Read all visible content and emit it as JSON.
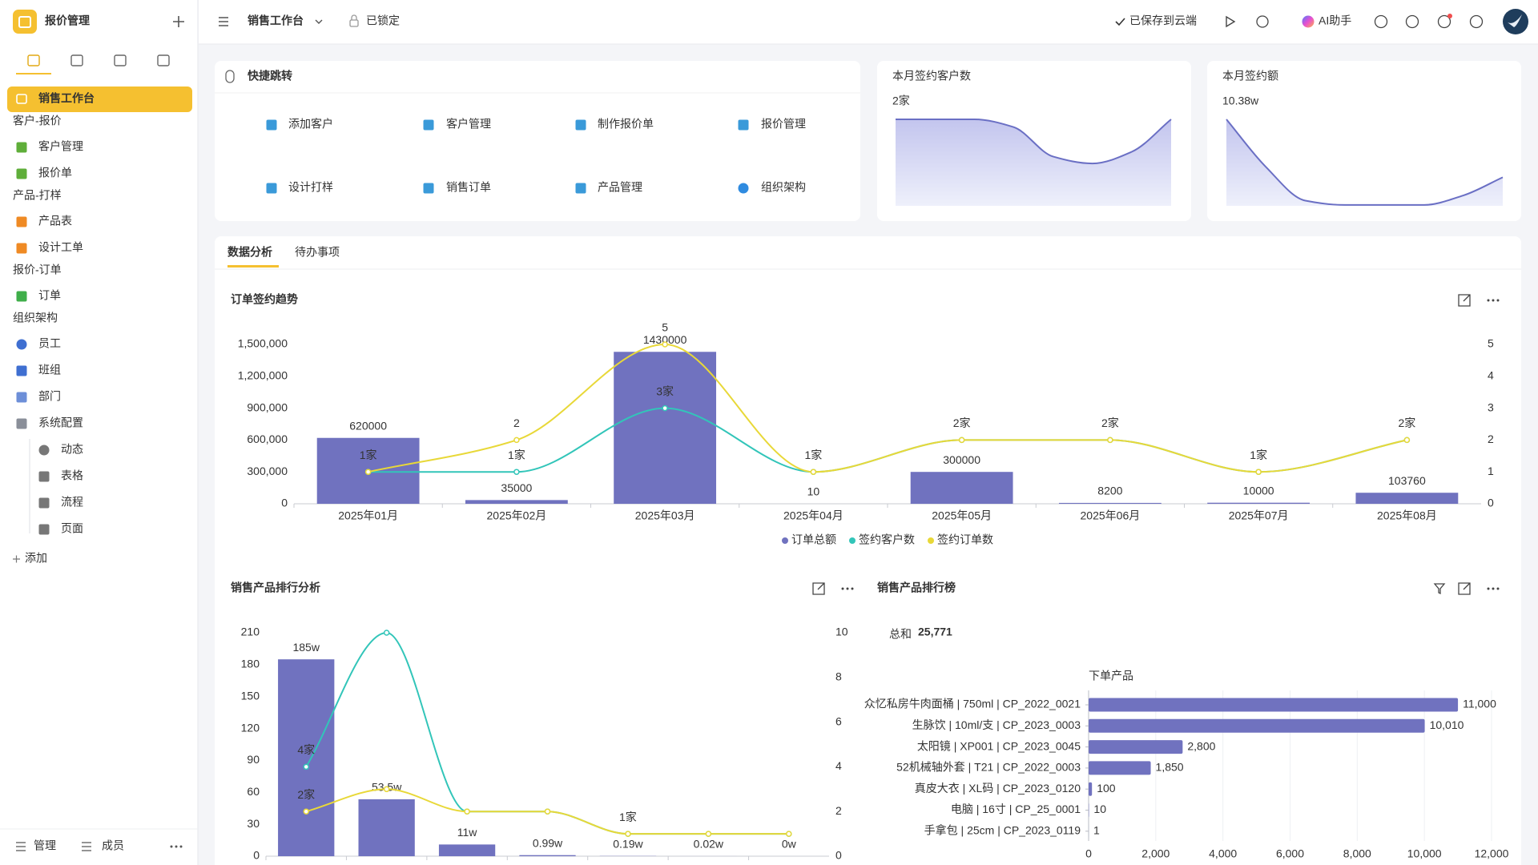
{
  "app": {
    "title": "报价管理"
  },
  "sidebar": {
    "active": "销售工作台",
    "groups": [
      {
        "label": "客户-报价",
        "items": [
          "客户管理",
          "报价单"
        ]
      },
      {
        "label": "产品-打样",
        "items": [
          "产品表",
          "设计工单"
        ]
      },
      {
        "label": "报价-订单",
        "items": [
          "订单"
        ]
      },
      {
        "label": "组织架构",
        "items": [
          "员工",
          "班组",
          "部门",
          "系统配置"
        ]
      }
    ],
    "config_children": [
      "动态",
      "表格",
      "流程",
      "页面"
    ],
    "add": "添加",
    "footer": [
      "管理",
      "成员"
    ]
  },
  "topbar": {
    "page": "销售工作台",
    "lock": "已锁定",
    "saved": "已保存到云端",
    "ai": "AI助手"
  },
  "quick": {
    "title": "快捷跳转",
    "items": [
      "添加客户",
      "客户管理",
      "制作报价单",
      "报价管理",
      "设计打样",
      "销售订单",
      "产品管理",
      "组织架构"
    ]
  },
  "stats": [
    {
      "label": "本月签约客户数",
      "value": "2家",
      "trend": [
        2,
        2,
        2,
        1.82,
        1.14,
        0.98,
        1.25,
        2
      ]
    },
    {
      "label": "本月签约额",
      "value": "10.38w",
      "trend": [
        10,
        4.5,
        0.6,
        0.1,
        0.1,
        0.1,
        1.2,
        3.3
      ]
    }
  ],
  "tabs": [
    "数据分析",
    "待办事项"
  ],
  "chart_data": [
    {
      "type": "combo",
      "title": "订单签约趋势",
      "categories": [
        "2025年01月",
        "2025年02月",
        "2025年03月",
        "2025年04月",
        "2025年05月",
        "2025年06月",
        "2025年07月",
        "2025年08月"
      ],
      "series": [
        {
          "name": "订单总额",
          "type": "bar",
          "color": "#7072bf",
          "values": [
            620000,
            35000,
            1430000,
            10,
            300000,
            8200,
            10000,
            103760
          ]
        },
        {
          "name": "签约客户数",
          "type": "line",
          "axis": "y2",
          "color": "#32c5b9",
          "values": [
            1,
            1,
            3,
            1,
            2,
            2,
            1,
            2
          ],
          "value_labels": [
            "1家",
            "1家",
            "3家",
            "1家",
            "2家",
            "2家",
            "1家",
            "2家"
          ]
        },
        {
          "name": "签约订单数",
          "type": "line",
          "axis": "y2",
          "color": "#e8d838",
          "values": [
            1,
            2,
            5,
            1,
            2,
            2,
            1,
            2
          ],
          "value_labels": [
            null,
            "2",
            "5",
            null,
            null,
            null,
            null,
            null
          ]
        }
      ],
      "ylim": [
        0,
        1500000
      ],
      "yticks": [
        0,
        {
          "value": 300000,
          "label": "300,000"
        },
        {
          "value": 600000,
          "label": "600,000"
        },
        {
          "value": 900000,
          "label": "900,000"
        },
        {
          "value": 1200000,
          "label": "1,200,000"
        },
        {
          "value": 1500000,
          "label": "1,500,000"
        }
      ],
      "y2lim": [
        0,
        5
      ],
      "y2ticks": [
        0,
        1,
        2,
        3,
        4,
        5
      ],
      "legend": "bottom"
    },
    {
      "type": "combo",
      "title": "销售产品排行分析",
      "categories": [
        null,
        null,
        null,
        null,
        null,
        null,
        null
      ],
      "series": [
        {
          "type": "bar",
          "color": "#7072bf",
          "values": [
            185,
            53.5,
            11,
            0.99,
            0.19,
            0.02,
            0
          ],
          "value_labels": [
            "185w",
            "53.5w",
            "11w",
            "0.99w",
            "0.19w",
            "0.02w",
            "0w"
          ]
        },
        {
          "type": "line",
          "axis": "y2",
          "color": "#32c5b9",
          "values": [
            4,
            10,
            2,
            2,
            1,
            1,
            1
          ],
          "value_labels": [
            "4家",
            null,
            null,
            null,
            null,
            null,
            null
          ]
        },
        {
          "type": "line",
          "axis": "y2",
          "color": "#e8d838",
          "values": [
            2,
            3,
            2,
            2,
            1,
            1,
            1
          ],
          "value_labels": [
            "2家",
            null,
            null,
            null,
            "1家",
            null,
            null
          ]
        }
      ],
      "ylim": [
        0,
        210
      ],
      "yticks": [
        0,
        30,
        60,
        90,
        120,
        150,
        180,
        210
      ],
      "y2lim": [
        0,
        10
      ],
      "y2ticks": [
        0,
        2,
        4,
        6,
        8,
        10
      ]
    },
    {
      "type": "hbar",
      "title": "销售产品排行榜",
      "total_caption": "总和",
      "total": 25771,
      "total_label": "25,771",
      "axis_title": "下单产品",
      "categories": [
        "众忆私房牛肉面桶 | 750ml | CP_2022_0021",
        "生脉饮 | 10ml/支 | CP_2023_0003",
        "太阳镜 | XP001 | CP_2023_0045",
        "52机械轴外套 | T21 | CP_2022_0003",
        "真皮大衣 | XL码 | CP_2023_0120",
        "电脑 | 16寸 | CP_25_0001",
        "手拿包 | 25cm | CP_2023_0119"
      ],
      "values": [
        11000,
        10010,
        2800,
        1850,
        100,
        10,
        1
      ],
      "value_labels": [
        "11,000",
        "10,010",
        "2,800",
        "1,850",
        "100",
        "10",
        "1"
      ],
      "color": "#7072bf",
      "xlim": [
        0,
        12000
      ],
      "xticks": [
        0,
        {
          "value": 2000,
          "label": "2,000"
        },
        {
          "value": 4000,
          "label": "4,000"
        },
        {
          "value": 6000,
          "label": "6,000"
        },
        {
          "value": 8000,
          "label": "8,000"
        },
        {
          "value": 10000,
          "label": "10,000"
        },
        {
          "value": 12000,
          "label": "12,000"
        }
      ],
      "grid": true
    }
  ]
}
